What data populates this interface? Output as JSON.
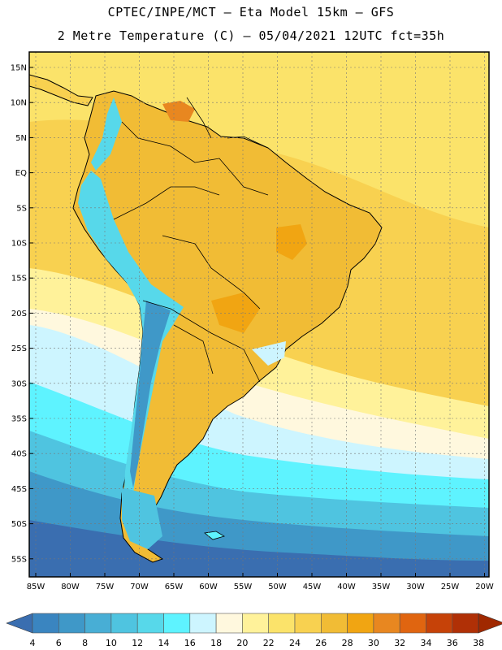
{
  "header": {
    "line1": "CPTEC/INPE/MCT –  Eta Model 15km – GFS",
    "line2": "2 Metre Temperature (C) – 05/04/2021 12UTC fct=35h"
  },
  "map": {
    "lat_labels": [
      "15N",
      "10N",
      "5N",
      "EQ",
      "5S",
      "10S",
      "15S",
      "20S",
      "25S",
      "30S",
      "35S",
      "40S",
      "45S",
      "50S",
      "55S"
    ],
    "lon_labels": [
      "85W",
      "80W",
      "75W",
      "70W",
      "65W",
      "60W",
      "55W",
      "50W",
      "45W",
      "40W",
      "35W",
      "30W",
      "25W",
      "20W"
    ]
  },
  "colorbar": {
    "levels": [
      "4",
      "6",
      "8",
      "10",
      "12",
      "14",
      "16",
      "18",
      "20",
      "22",
      "24",
      "26",
      "28",
      "30",
      "32",
      "34",
      "36",
      "38"
    ],
    "colors": [
      "#3a6eb0",
      "#3a85c0",
      "#3f98c8",
      "#48aed5",
      "#4fc4e0",
      "#57d8ea",
      "#5ef3ff",
      "#cdf5ff",
      "#fff8de",
      "#fff29a",
      "#fbe36a",
      "#f8d150",
      "#f1bc35",
      "#f1a512",
      "#e88720",
      "#e06510",
      "#c64208",
      "#b03006",
      "#a02800"
    ]
  }
}
